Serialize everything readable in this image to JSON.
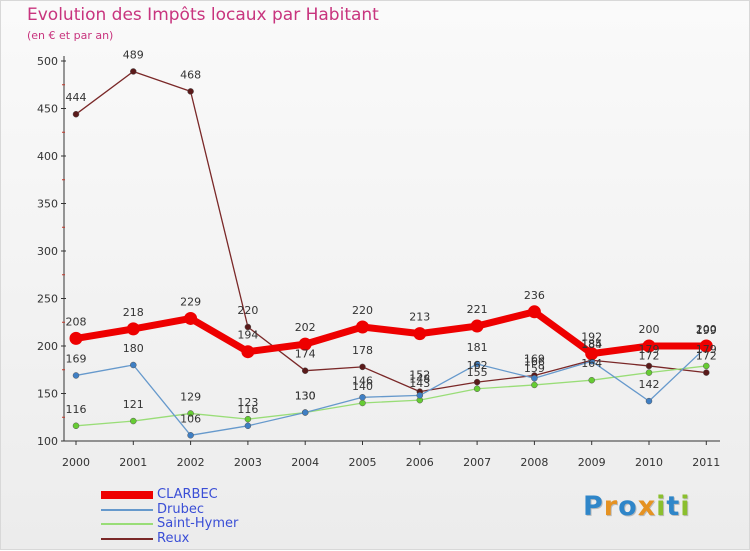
{
  "chart_data": {
    "type": "line",
    "title": "Evolution des Impôts locaux par Habitant",
    "subtitle": "(en € et par an)",
    "xlabel": "",
    "ylabel": "",
    "categories": [
      "2000",
      "2001",
      "2002",
      "2003",
      "2004",
      "2005",
      "2006",
      "2007",
      "2008",
      "2009",
      "2010",
      "2011"
    ],
    "ylim": [
      100,
      500
    ],
    "yticks": [
      "100",
      "150",
      "200",
      "250",
      "300",
      "350",
      "400",
      "450",
      "500"
    ],
    "grid": false,
    "legend_position": "bottom-left",
    "series": [
      {
        "name": "CLARBEC",
        "color": "#ee0000",
        "values": [
          208,
          218,
          229,
          194,
          202,
          220,
          213,
          221,
          236,
          192,
          200,
          200
        ],
        "labels": [
          "208",
          "218",
          "229",
          "194",
          "202",
          "220",
          "213",
          "221",
          "236",
          "192",
          "200",
          "200"
        ]
      },
      {
        "name": "Drubec",
        "color": "#6699cc",
        "values": [
          169,
          180,
          106,
          116,
          130,
          146,
          148,
          181,
          166,
          184,
          142,
          199
        ],
        "labels": [
          "169",
          "180",
          "106",
          "116",
          "130",
          "146",
          "148",
          "181",
          "166",
          "184",
          "142",
          "199"
        ]
      },
      {
        "name": "Saint-Hymer",
        "color": "#99dd77",
        "values": [
          116,
          121,
          129,
          123,
          130,
          140,
          143,
          155,
          159,
          164,
          172,
          179
        ],
        "labels": [
          "116",
          "121",
          "129",
          "123",
          "130",
          "140",
          "143",
          "155",
          "159",
          "164",
          "172",
          "179"
        ]
      },
      {
        "name": "Reux",
        "color": "#7a2828",
        "values": [
          444,
          489,
          468,
          220,
          174,
          178,
          152,
          162,
          169,
          185,
          179,
          172
        ],
        "labels": [
          "444",
          "489",
          "468",
          "220",
          "174",
          "178",
          "152",
          "162",
          "169",
          "185",
          "179",
          "172"
        ]
      }
    ]
  },
  "logo": {
    "letters": [
      "P",
      "r",
      "o",
      "x",
      "i",
      "t",
      "i"
    ],
    "colors": [
      "#2f86c9",
      "#e59222",
      "#2f86c9",
      "#e59222",
      "#8bbf2e",
      "#2f86c9",
      "#8bbf2e"
    ]
  }
}
